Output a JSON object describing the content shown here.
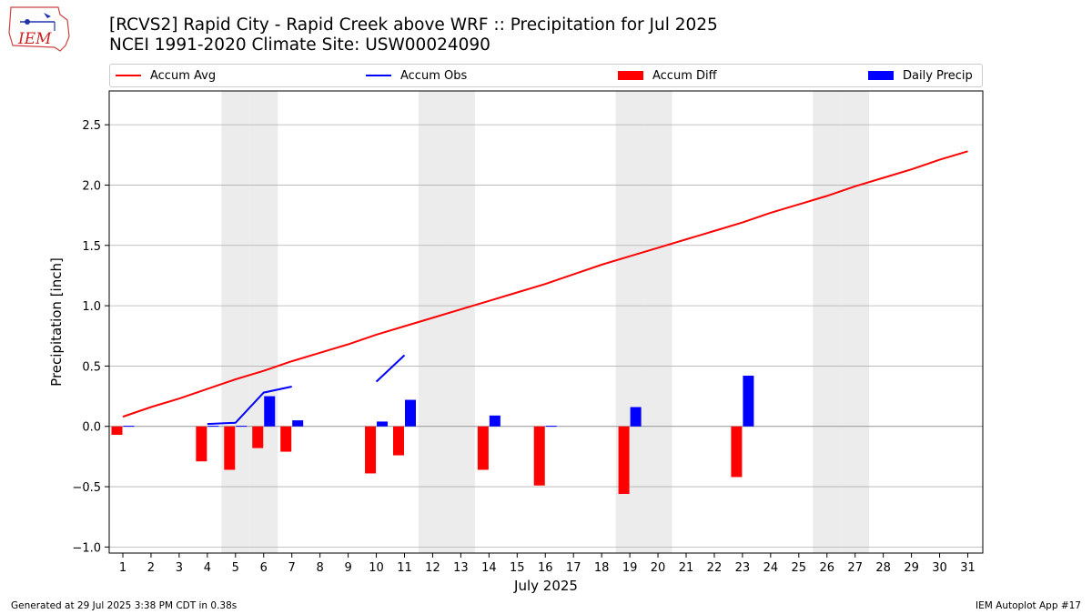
{
  "header": {
    "title_line1": "[RCVS2] Rapid City - Rapid Creek above WRF :: Precipitation for Jul 2025",
    "title_line2": "NCEI 1991-2020 Climate Site: USW00024090"
  },
  "logo": {
    "text": "IEM",
    "icon": "iem-logo-icon"
  },
  "footer": {
    "generated": "Generated at 29 Jul 2025 3:38 PM CDT in 0.38s",
    "app": "IEM Autoplot App #17"
  },
  "colors": {
    "avg": "#ff0000",
    "obs": "#0000ff",
    "diff": "#ff0000",
    "daily": "#0000ff",
    "weekend": "#ececec",
    "grid": "#b0b0b0"
  },
  "chart_data": {
    "type": "bar",
    "xlabel": "July 2025",
    "ylabel": "Precipitation [inch]",
    "ylim": [
      -1.05,
      2.78
    ],
    "yticks": [
      -1.0,
      -0.5,
      0.0,
      0.5,
      1.0,
      1.5,
      2.0,
      2.5
    ],
    "ytick_labels": [
      "−1.0",
      "−0.5",
      "0.0",
      "0.5",
      "1.0",
      "1.5",
      "2.0",
      "2.5"
    ],
    "days": [
      1,
      2,
      3,
      4,
      5,
      6,
      7,
      8,
      9,
      10,
      11,
      12,
      13,
      14,
      15,
      16,
      17,
      18,
      19,
      20,
      21,
      22,
      23,
      24,
      25,
      26,
      27,
      28,
      29,
      30,
      31
    ],
    "shaded_days": [
      5,
      6,
      12,
      13,
      19,
      20,
      26,
      27
    ],
    "grid": true,
    "legend_position": "top",
    "series": [
      {
        "name": "Accum Avg",
        "kind": "line",
        "values": [
          0.08,
          0.16,
          0.23,
          0.31,
          0.39,
          0.46,
          0.54,
          0.61,
          0.68,
          0.76,
          0.83,
          0.9,
          0.97,
          1.04,
          1.11,
          1.18,
          1.26,
          1.34,
          1.41,
          1.48,
          1.55,
          1.62,
          1.69,
          1.77,
          1.84,
          1.91,
          1.99,
          2.06,
          2.13,
          2.21,
          2.28
        ]
      },
      {
        "name": "Accum Obs",
        "kind": "line",
        "segments": [
          {
            "days": [
              1
            ],
            "values": [
              0.0
            ]
          },
          {
            "days": [
              4,
              5,
              6,
              7
            ],
            "values": [
              0.02,
              0.03,
              0.28,
              0.33
            ]
          },
          {
            "days": [
              10,
              11
            ],
            "values": [
              0.37,
              0.59
            ]
          }
        ]
      },
      {
        "name": "Accum Diff",
        "kind": "bar",
        "days": [
          1,
          4,
          5,
          6,
          7,
          10,
          11,
          14,
          16,
          19,
          23
        ],
        "values": [
          -0.07,
          -0.29,
          -0.36,
          -0.18,
          -0.21,
          -0.39,
          -0.24,
          -0.36,
          -0.49,
          -0.56,
          -0.42
        ]
      },
      {
        "name": "Daily Precip",
        "kind": "bar",
        "days": [
          1,
          4,
          5,
          6,
          7,
          10,
          11,
          14,
          16,
          19,
          23
        ],
        "values": [
          0.005,
          0.005,
          0.005,
          0.25,
          0.05,
          0.04,
          0.22,
          0.09,
          0.005,
          0.16,
          0.42
        ]
      }
    ]
  }
}
